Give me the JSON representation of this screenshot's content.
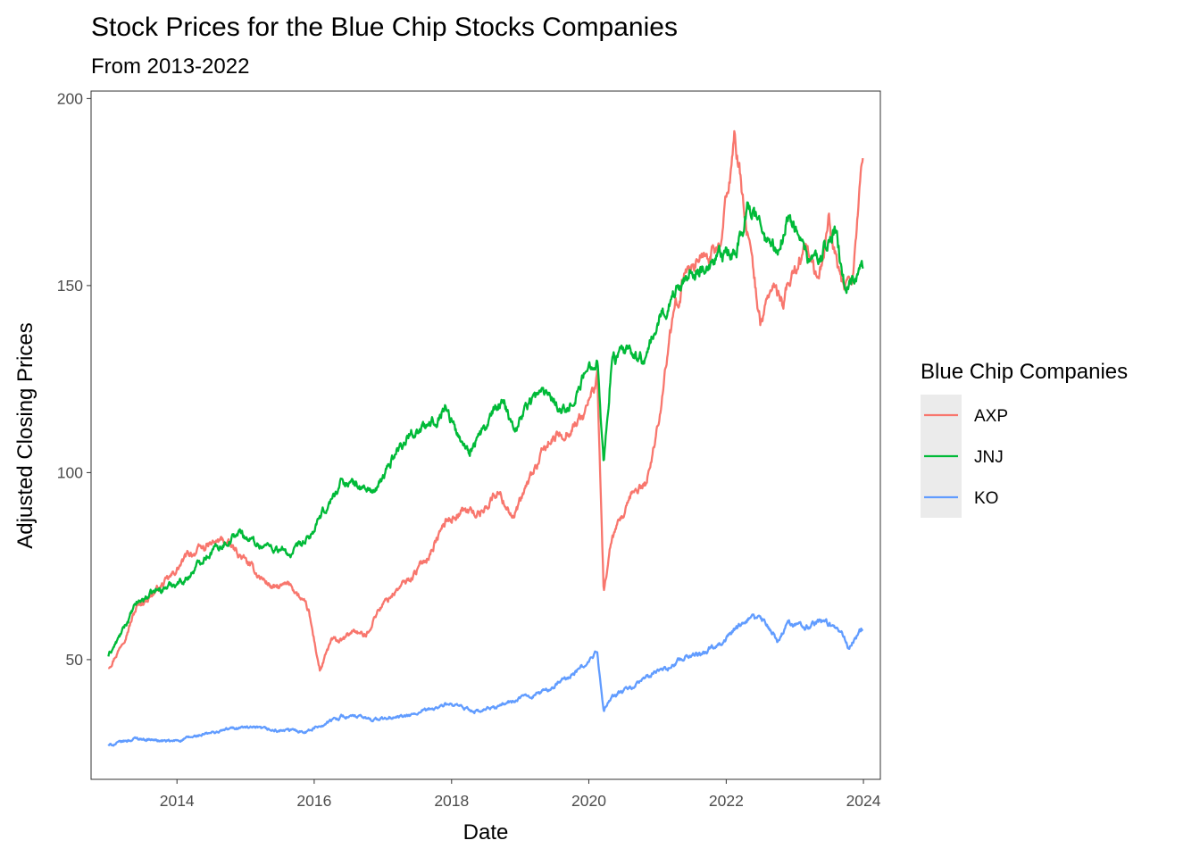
{
  "chart_data": {
    "type": "line",
    "title": "Stock Prices for the Blue Chip Stocks Companies",
    "subtitle": "From 2013-2022",
    "xlabel": "Date",
    "ylabel": "Adjusted Closing Prices",
    "xlim": [
      "2012-10-01",
      "2024-03-31"
    ],
    "ylim": [
      18,
      202
    ],
    "x_ticks": [
      "2014",
      "2016",
      "2018",
      "2020",
      "2022",
      "2024"
    ],
    "y_ticks": [
      50,
      100,
      150,
      200
    ],
    "grid": false,
    "legend": {
      "title": "Blue Chip Companies",
      "position": "right"
    },
    "series": [
      {
        "name": "AXP",
        "color": "#F8766D",
        "points": [
          [
            "2013-01-01",
            48
          ],
          [
            "2013-03-01",
            53
          ],
          [
            "2013-06-01",
            64
          ],
          [
            "2013-09-01",
            68
          ],
          [
            "2013-12-01",
            72
          ],
          [
            "2014-03-01",
            78
          ],
          [
            "2014-06-01",
            80
          ],
          [
            "2014-09-01",
            82
          ],
          [
            "2014-12-01",
            78
          ],
          [
            "2015-03-01",
            73
          ],
          [
            "2015-06-01",
            69
          ],
          [
            "2015-09-01",
            70
          ],
          [
            "2015-12-01",
            63
          ],
          [
            "2016-02-01",
            47
          ],
          [
            "2016-04-01",
            55
          ],
          [
            "2016-06-01",
            55
          ],
          [
            "2016-08-01",
            58
          ],
          [
            "2016-10-01",
            56
          ],
          [
            "2016-12-01",
            63
          ],
          [
            "2017-03-01",
            68
          ],
          [
            "2017-06-01",
            72
          ],
          [
            "2017-09-01",
            78
          ],
          [
            "2017-12-01",
            87
          ],
          [
            "2018-03-01",
            90
          ],
          [
            "2018-06-01",
            89
          ],
          [
            "2018-09-01",
            95
          ],
          [
            "2018-12-01",
            88
          ],
          [
            "2019-03-01",
            99
          ],
          [
            "2019-06-01",
            108
          ],
          [
            "2019-09-01",
            111
          ],
          [
            "2019-12-01",
            115
          ],
          [
            "2020-02-15",
            125
          ],
          [
            "2020-03-20",
            68
          ],
          [
            "2020-05-01",
            82
          ],
          [
            "2020-07-01",
            88
          ],
          [
            "2020-09-01",
            95
          ],
          [
            "2020-11-01",
            97
          ],
          [
            "2021-01-01",
            112
          ],
          [
            "2021-03-01",
            135
          ],
          [
            "2021-06-01",
            155
          ],
          [
            "2021-09-01",
            158
          ],
          [
            "2021-12-01",
            160
          ],
          [
            "2022-02-15",
            190
          ],
          [
            "2022-05-01",
            162
          ],
          [
            "2022-07-01",
            140
          ],
          [
            "2022-09-01",
            150
          ],
          [
            "2022-11-01",
            145
          ],
          [
            "2023-01-01",
            155
          ],
          [
            "2023-03-01",
            160
          ],
          [
            "2023-05-01",
            150
          ],
          [
            "2023-07-01",
            168
          ],
          [
            "2023-09-01",
            150
          ],
          [
            "2023-11-01",
            148
          ],
          [
            "2023-12-31",
            187
          ]
        ]
      },
      {
        "name": "JNJ",
        "color": "#00BA38",
        "points": [
          [
            "2013-01-01",
            51
          ],
          [
            "2013-03-01",
            56
          ],
          [
            "2013-06-01",
            65
          ],
          [
            "2013-09-01",
            68
          ],
          [
            "2013-12-01",
            70
          ],
          [
            "2014-03-01",
            72
          ],
          [
            "2014-06-01",
            78
          ],
          [
            "2014-09-01",
            81
          ],
          [
            "2014-12-01",
            84
          ],
          [
            "2015-03-01",
            81
          ],
          [
            "2015-06-01",
            80
          ],
          [
            "2015-09-01",
            78
          ],
          [
            "2015-12-01",
            82
          ],
          [
            "2016-03-01",
            90
          ],
          [
            "2016-06-01",
            98
          ],
          [
            "2016-09-01",
            96
          ],
          [
            "2016-12-01",
            95
          ],
          [
            "2017-03-01",
            105
          ],
          [
            "2017-06-01",
            111
          ],
          [
            "2017-09-01",
            112
          ],
          [
            "2017-12-01",
            118
          ],
          [
            "2018-02-01",
            110
          ],
          [
            "2018-04-01",
            106
          ],
          [
            "2018-07-01",
            112
          ],
          [
            "2018-10-01",
            120
          ],
          [
            "2018-12-01",
            112
          ],
          [
            "2019-03-01",
            120
          ],
          [
            "2019-06-01",
            122
          ],
          [
            "2019-09-01",
            116
          ],
          [
            "2019-12-01",
            125
          ],
          [
            "2020-02-15",
            132
          ],
          [
            "2020-03-20",
            102
          ],
          [
            "2020-05-01",
            130
          ],
          [
            "2020-08-01",
            132
          ],
          [
            "2020-11-01",
            130
          ],
          [
            "2021-01-01",
            140
          ],
          [
            "2021-04-01",
            148
          ],
          [
            "2021-07-01",
            155
          ],
          [
            "2021-10-01",
            154
          ],
          [
            "2021-12-01",
            157
          ],
          [
            "2022-03-01",
            160
          ],
          [
            "2022-05-01",
            172
          ],
          [
            "2022-08-01",
            162
          ],
          [
            "2022-10-01",
            158
          ],
          [
            "2022-12-01",
            170
          ],
          [
            "2023-03-01",
            158
          ],
          [
            "2023-05-01",
            156
          ],
          [
            "2023-08-01",
            165
          ],
          [
            "2023-10-01",
            148
          ],
          [
            "2023-12-31",
            156
          ]
        ]
      },
      {
        "name": "KO",
        "color": "#619CFF",
        "points": [
          [
            "2013-01-01",
            27
          ],
          [
            "2013-06-01",
            29
          ],
          [
            "2013-12-01",
            28
          ],
          [
            "2014-06-01",
            30
          ],
          [
            "2014-12-01",
            32
          ],
          [
            "2015-06-01",
            31
          ],
          [
            "2015-12-01",
            31
          ],
          [
            "2016-06-01",
            35
          ],
          [
            "2016-12-01",
            34
          ],
          [
            "2017-06-01",
            35
          ],
          [
            "2017-12-01",
            38
          ],
          [
            "2018-06-01",
            36
          ],
          [
            "2018-12-01",
            39
          ],
          [
            "2019-06-01",
            42
          ],
          [
            "2019-12-01",
            48
          ],
          [
            "2020-02-15",
            52
          ],
          [
            "2020-03-20",
            36
          ],
          [
            "2020-05-01",
            40
          ],
          [
            "2020-09-01",
            43
          ],
          [
            "2020-12-01",
            46
          ],
          [
            "2021-03-01",
            48
          ],
          [
            "2021-06-01",
            51
          ],
          [
            "2021-09-01",
            52
          ],
          [
            "2021-12-01",
            55
          ],
          [
            "2022-03-01",
            58
          ],
          [
            "2022-05-01",
            61
          ],
          [
            "2022-08-01",
            60
          ],
          [
            "2022-10-01",
            55
          ],
          [
            "2022-12-01",
            60
          ],
          [
            "2023-03-01",
            59
          ],
          [
            "2023-06-01",
            60
          ],
          [
            "2023-09-01",
            58
          ],
          [
            "2023-10-15",
            53
          ],
          [
            "2023-12-31",
            59
          ]
        ]
      }
    ]
  }
}
